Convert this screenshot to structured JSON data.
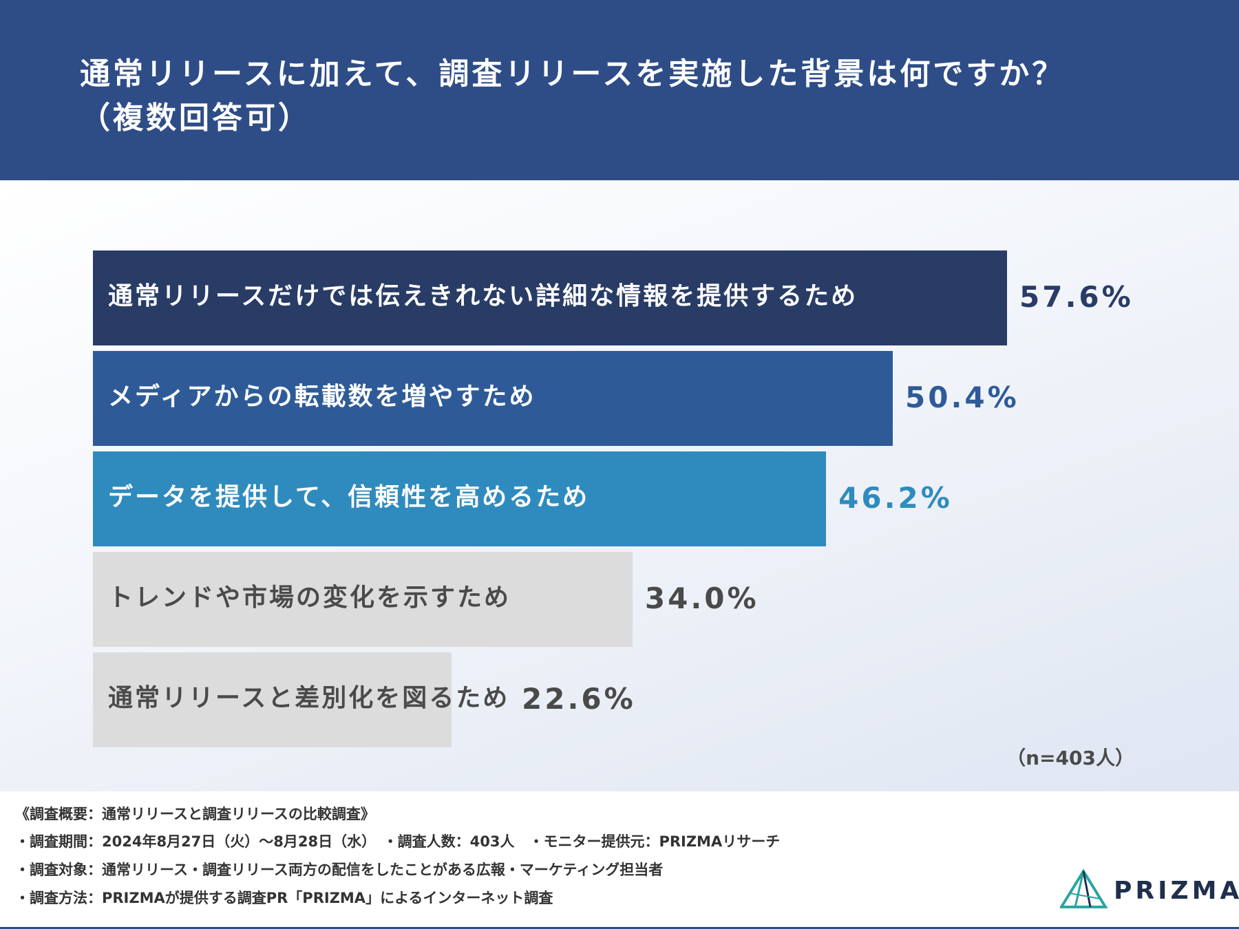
{
  "title": {
    "line1": "通常リリースに加えて、調査リリースを実施した背景は何ですか？",
    "line2": "（複数回答可）"
  },
  "chart_data": {
    "type": "bar",
    "orientation": "horizontal",
    "unit": "%",
    "xlim": [
      0,
      70
    ],
    "categories": [
      "通常リリースだけでは伝えきれない詳細な情報を提供するため",
      "メディアからの転載数を増やすため",
      "データを提供して、信頼性を高めるため",
      "トレンドや市場の変化を示すため",
      "通常リリースと差別化を図るため"
    ],
    "values": [
      57.6,
      50.4,
      46.2,
      34.0,
      22.6
    ],
    "value_labels": [
      "57.6%",
      "50.4%",
      "46.2%",
      "34.0%",
      "22.6%"
    ],
    "bar_colors": [
      "#283c66",
      "#2e5b98",
      "#2f8bbd",
      "#dcdcdc",
      "#dcdcdc"
    ],
    "label_colors": [
      "#ffffff",
      "#ffffff",
      "#ffffff",
      "#4a4a4a",
      "#4a4a4a"
    ],
    "value_colors": [
      "#283c66",
      "#2e5b98",
      "#2f8bbd",
      "#4a4a4a",
      "#4a4a4a"
    ],
    "note": "（n=403人）"
  },
  "footer": {
    "overview": "《調査概要：通常リリースと調査リリースの比較調査》",
    "period": "・調査期間：2024年8月27日（火）～8月28日（水）　・調査人数：403人　・モニター提供元：PRIZMAリサーチ",
    "target": "・調査対象：通常リリース・調査リリース両方の配信をしたことがある広報・マーケティング担当者",
    "method": "・調査方法：PRIZMAが提供する調査PR「PRIZMA」によるインターネット調査"
  },
  "logo": {
    "text": "PRIZMA",
    "color": "#2aa5a0"
  }
}
